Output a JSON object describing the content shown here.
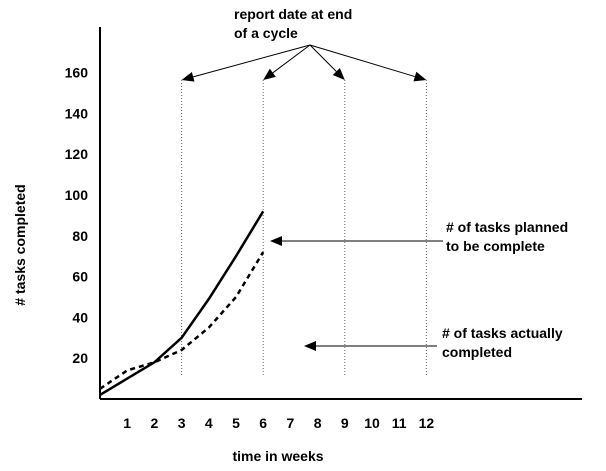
{
  "chart_data": {
    "type": "line",
    "xlabel": "time in weeks",
    "ylabel": "# tasks completed",
    "xlim": [
      0,
      13.5
    ],
    "ylim": [
      0,
      180
    ],
    "x_ticks": [
      "1",
      "2",
      "3",
      "4",
      "5",
      "6",
      "7",
      "8",
      "9",
      "10",
      "11",
      "12"
    ],
    "y_ticks": [
      "20",
      "40",
      "60",
      "80",
      "100",
      "120",
      "140",
      "160"
    ],
    "series": [
      {
        "style": "solid",
        "points": [
          [
            0,
            2
          ],
          [
            1,
            10
          ],
          [
            2,
            18
          ],
          [
            3,
            30
          ],
          [
            4,
            49
          ],
          [
            5,
            70
          ],
          [
            6,
            92
          ]
        ]
      },
      {
        "style": "dashed",
        "points": [
          [
            0,
            5
          ],
          [
            1,
            14
          ],
          [
            2,
            18
          ],
          [
            3,
            24
          ],
          [
            4,
            35
          ],
          [
            5,
            50
          ],
          [
            6,
            72
          ]
        ]
      }
    ],
    "report_weeks": [
      3,
      6,
      9,
      12
    ],
    "annotations": {
      "report": [
        "report date at end",
        "of a cycle"
      ],
      "planned": [
        "# of tasks planned",
        "to be complete"
      ],
      "actual": [
        "# of tasks actually",
        "completed"
      ]
    }
  }
}
